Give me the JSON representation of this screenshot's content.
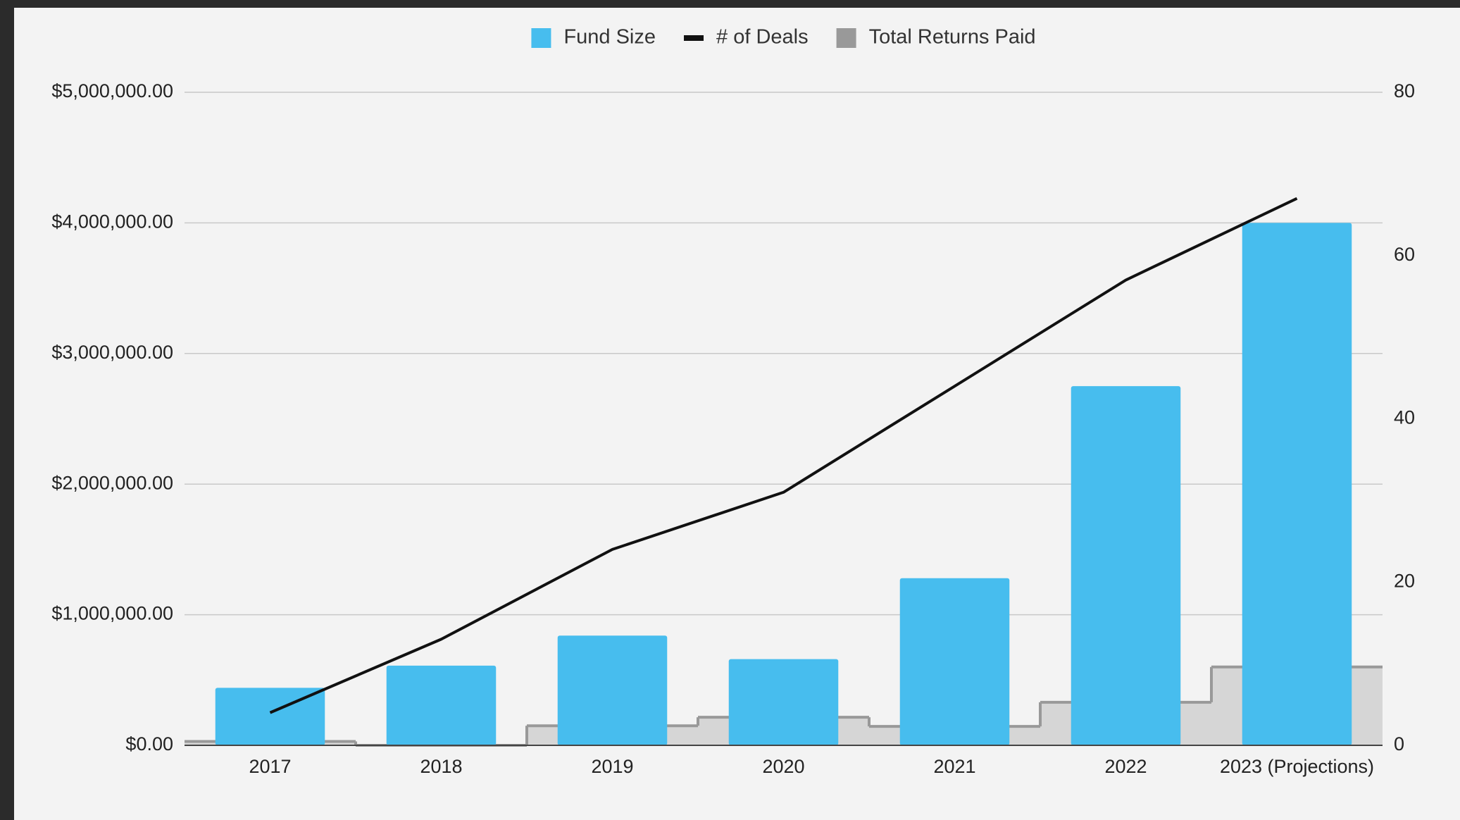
{
  "chart_data": {
    "type": "combo",
    "categories": [
      "2017",
      "2018",
      "2019",
      "2020",
      "2021",
      "2022",
      "2023 (Projections)"
    ],
    "series": [
      {
        "name": "Fund Size",
        "type": "bar",
        "color": "#47bdee",
        "values": [
          440000,
          610000,
          840000,
          660000,
          1280000,
          2750000,
          4000000
        ]
      },
      {
        "name": "# of Deals",
        "type": "line",
        "axis": "y2",
        "color": "#111111",
        "values": [
          4,
          13,
          24,
          31,
          44,
          57,
          67
        ]
      },
      {
        "name": "Total Returns Paid",
        "type": "step-area",
        "color": "#999999",
        "values": [
          30000,
          0,
          150000,
          215000,
          145000,
          330000,
          600000
        ]
      }
    ],
    "ylim": [
      0,
      5000000
    ],
    "yticks": [
      {
        "value": 0,
        "label": "$0.00"
      },
      {
        "value": 1000000,
        "label": "$1,000,000.00"
      },
      {
        "value": 2000000,
        "label": "$2,000,000.00"
      },
      {
        "value": 3000000,
        "label": "$3,000,000.00"
      },
      {
        "value": 4000000,
        "label": "$4,000,000.00"
      },
      {
        "value": 5000000,
        "label": "$5,000,000.00"
      }
    ],
    "y2lim": [
      0,
      80
    ],
    "y2ticks": [
      0,
      20,
      40,
      60,
      80
    ],
    "grid": true,
    "legend": "top"
  }
}
